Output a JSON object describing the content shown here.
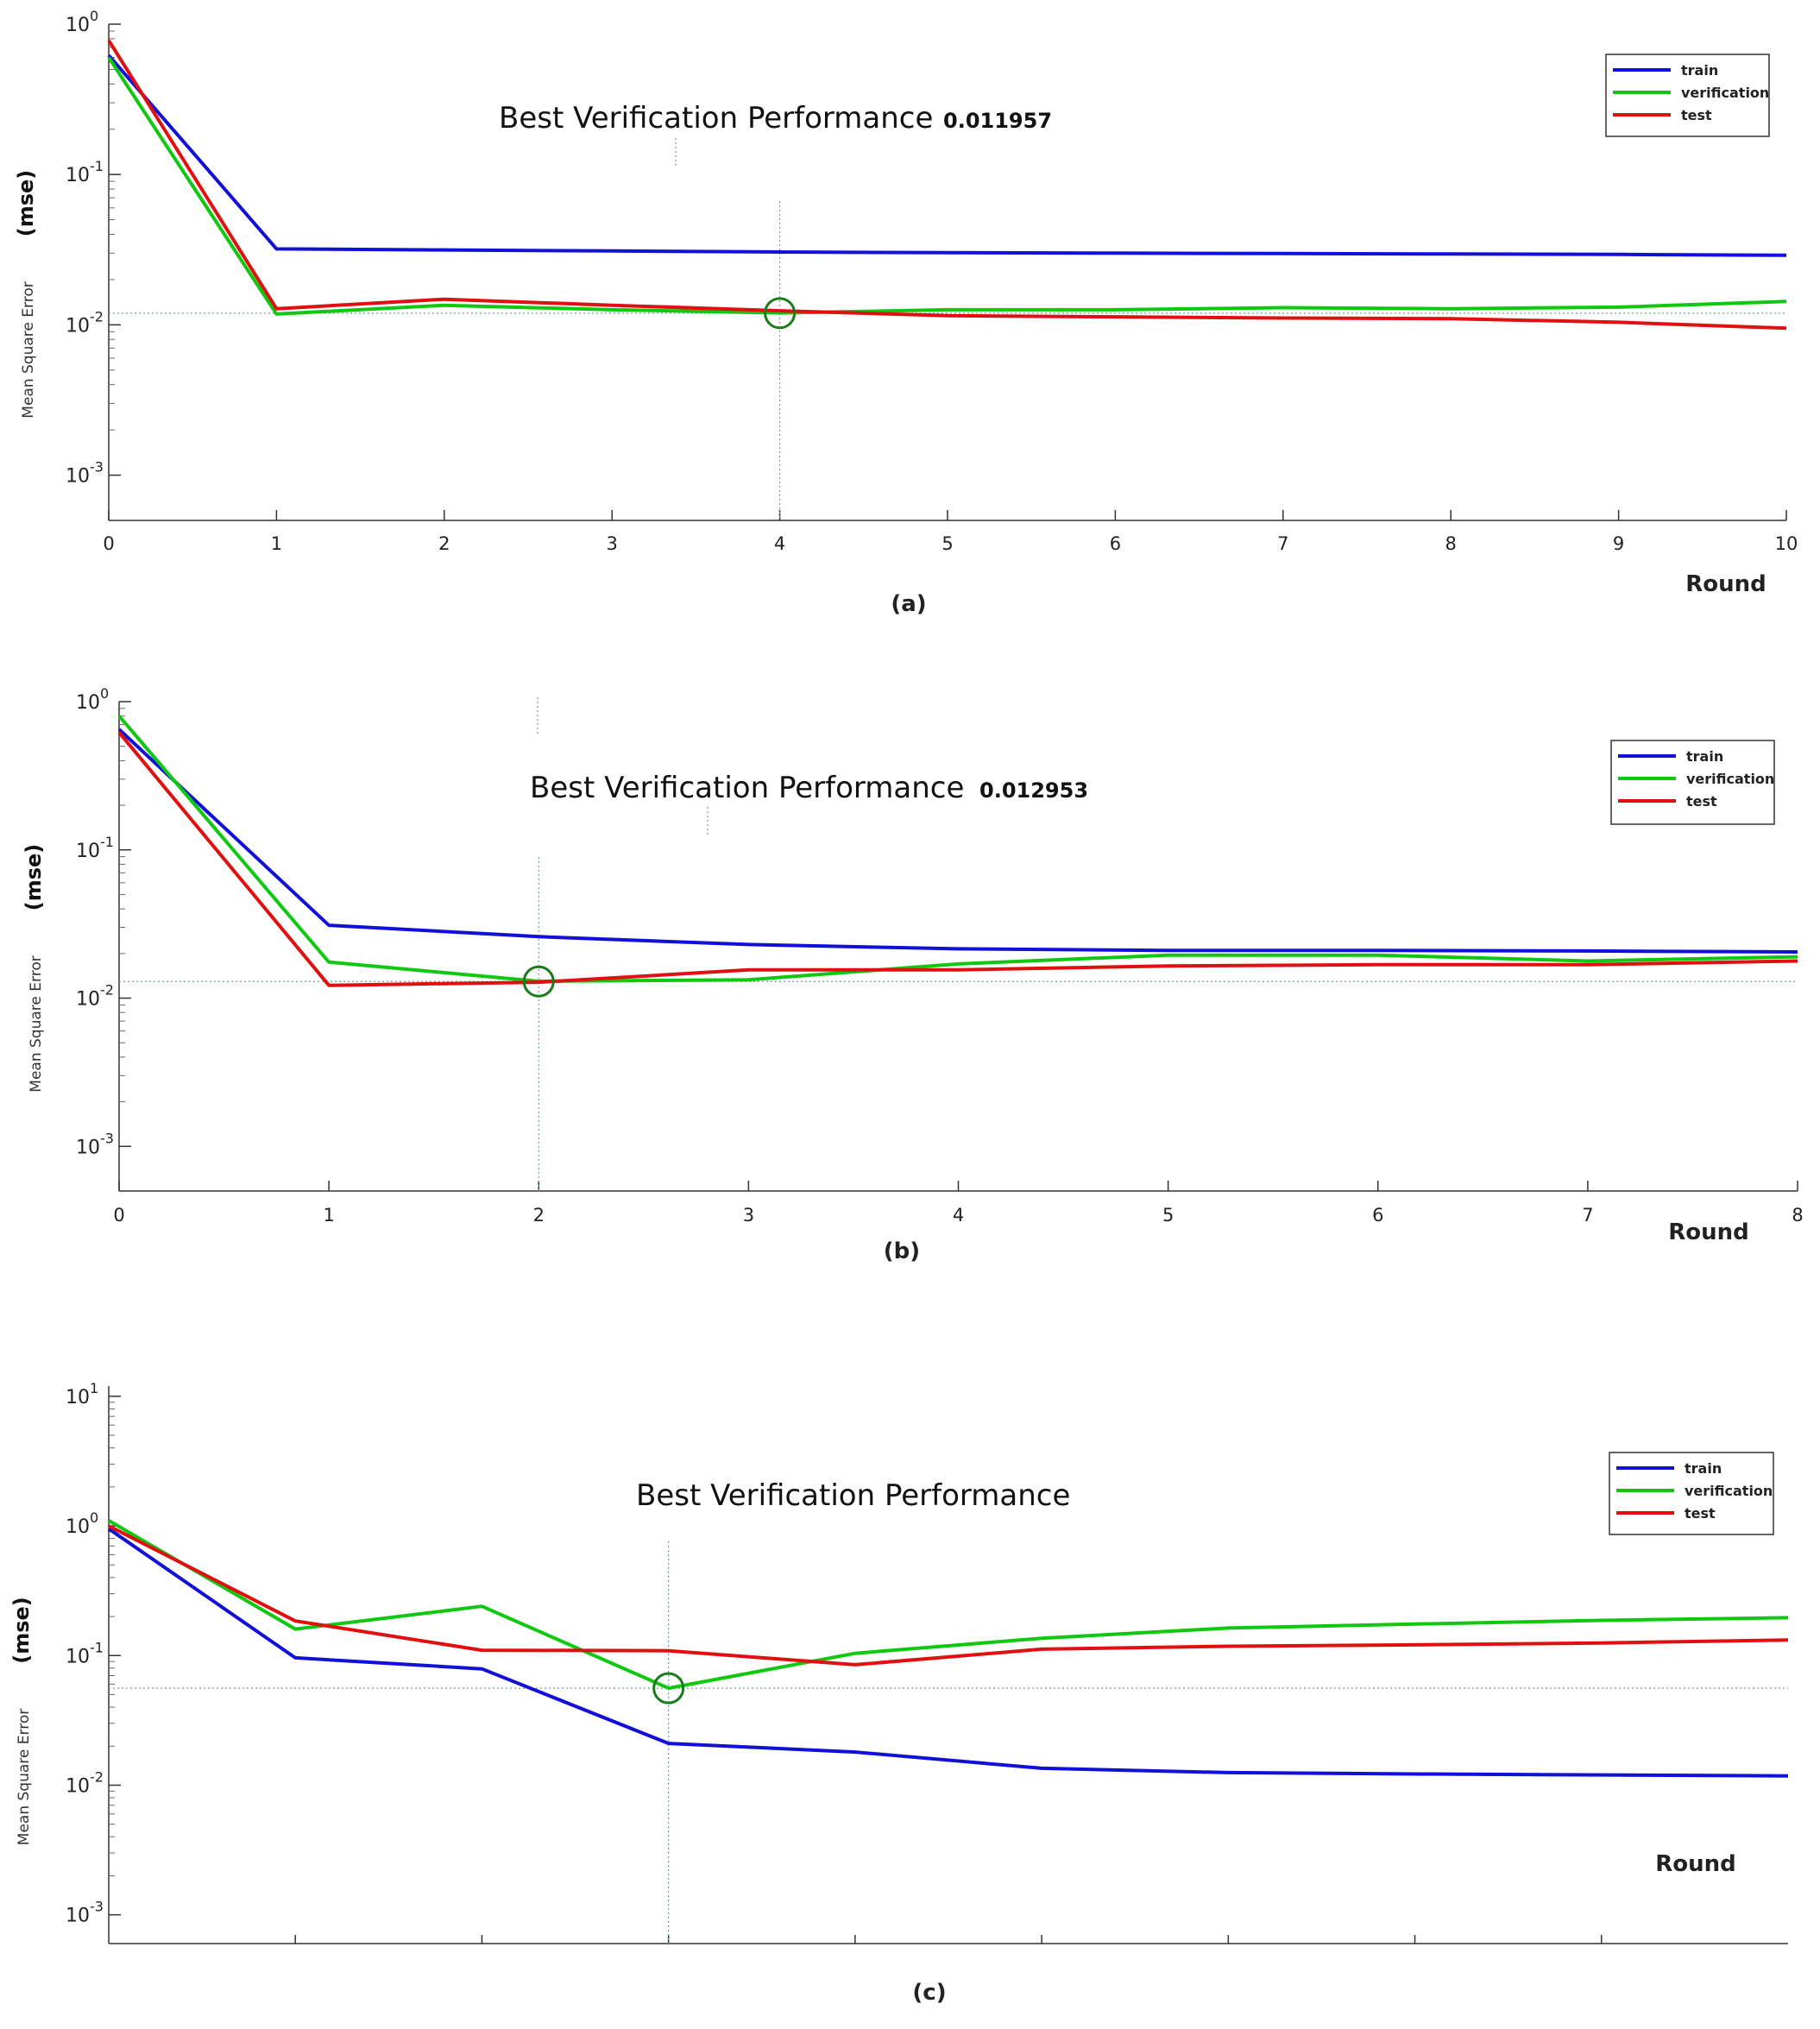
{
  "chart_data": [
    {
      "type": "line",
      "caption": "(a)",
      "title": "Best Verification Performance",
      "best_value": "0.011957",
      "xlabel": "Round",
      "ylabel": "Mean Square Error",
      "ylabel_unit": "(mse)",
      "yscale": "log",
      "xlim": [
        0,
        10
      ],
      "ylim": [
        0.0005,
        1.0
      ],
      "x_ticks": [
        "0",
        "1",
        "2",
        "3",
        "4",
        "5",
        "6",
        "7",
        "8",
        "9",
        "10"
      ],
      "y_ticks": [
        {
          "base": "10",
          "exp": "0",
          "value": 1.0
        },
        {
          "base": "10",
          "exp": "-1",
          "value": 0.1
        },
        {
          "base": "10",
          "exp": "-2",
          "value": 0.01
        },
        {
          "base": "10",
          "exp": "-3",
          "value": 0.001
        }
      ],
      "best_epoch": 4,
      "best_mse": 0.011957,
      "legend": [
        "train",
        "verification",
        "test"
      ],
      "series": [
        {
          "name": "train",
          "color": "#1010d8",
          "x": [
            0,
            1,
            2,
            3,
            4,
            5,
            6,
            7,
            8,
            9,
            10
          ],
          "values": [
            0.62,
            0.032,
            0.0315,
            0.031,
            0.0305,
            0.0302,
            0.03,
            0.0298,
            0.0296,
            0.0294,
            0.029
          ]
        },
        {
          "name": "verification",
          "color": "#10c810",
          "x": [
            0,
            1,
            2,
            3,
            4,
            5,
            6,
            7,
            8,
            9,
            10
          ],
          "values": [
            0.6,
            0.0118,
            0.0135,
            0.0126,
            0.012,
            0.0126,
            0.0126,
            0.013,
            0.0128,
            0.0131,
            0.0143
          ]
        },
        {
          "name": "test",
          "color": "#e01010",
          "x": [
            0,
            1,
            2,
            3,
            4,
            5,
            6,
            7,
            8,
            9,
            10
          ],
          "values": [
            0.78,
            0.0128,
            0.0148,
            0.0135,
            0.0124,
            0.0115,
            0.0113,
            0.0111,
            0.011,
            0.0104,
            0.0095
          ]
        }
      ]
    },
    {
      "type": "line",
      "caption": "(b)",
      "title": "Best Verification Performance",
      "best_value": "0.012953",
      "xlabel": "Round",
      "ylabel": "Mean Square Error",
      "ylabel_unit": "(mse)",
      "yscale": "log",
      "xlim": [
        0,
        8
      ],
      "ylim": [
        0.0005,
        1.0
      ],
      "x_ticks": [
        "0",
        "1",
        "2",
        "3",
        "4",
        "5",
        "6",
        "7",
        "8"
      ],
      "y_ticks": [
        {
          "base": "10",
          "exp": "0",
          "value": 1.0
        },
        {
          "base": "10",
          "exp": "-1",
          "value": 0.1
        },
        {
          "base": "10",
          "exp": "-2",
          "value": 0.01
        },
        {
          "base": "10",
          "exp": "-3",
          "value": 0.001
        }
      ],
      "best_epoch": 2,
      "best_mse": 0.012953,
      "legend": [
        "train",
        "verification",
        "test"
      ],
      "series": [
        {
          "name": "train",
          "color": "#1010d8",
          "x": [
            0,
            1,
            2,
            3,
            4,
            5,
            6,
            7,
            8
          ],
          "values": [
            0.65,
            0.031,
            0.026,
            0.023,
            0.0215,
            0.021,
            0.021,
            0.0208,
            0.0205
          ]
        },
        {
          "name": "verification",
          "color": "#10c810",
          "x": [
            0,
            1,
            2,
            3,
            4,
            5,
            6,
            7,
            8
          ],
          "values": [
            0.8,
            0.0175,
            0.013,
            0.0133,
            0.017,
            0.0195,
            0.0195,
            0.0178,
            0.019
          ]
        },
        {
          "name": "test",
          "color": "#e01010",
          "x": [
            0,
            1,
            2,
            3,
            4,
            5,
            6,
            7,
            8
          ],
          "values": [
            0.62,
            0.0122,
            0.0128,
            0.0155,
            0.0155,
            0.0165,
            0.0168,
            0.0168,
            0.0178
          ]
        }
      ]
    },
    {
      "type": "line",
      "caption": "(c)",
      "title": "Best Verification Performance",
      "best_value": "",
      "xlabel": "Round",
      "ylabel": "Mean Square Error",
      "ylabel_unit": "(mse)",
      "yscale": "log",
      "xlim": [
        0,
        9
      ],
      "ylim": [
        0.0006,
        12.0
      ],
      "x_ticks": [],
      "y_ticks": [
        {
          "base": "10",
          "exp": "1",
          "value": 10.0
        },
        {
          "base": "10",
          "exp": "0",
          "value": 1.0
        },
        {
          "base": "10",
          "exp": "-1",
          "value": 0.1
        },
        {
          "base": "10",
          "exp": "-2",
          "value": 0.01
        },
        {
          "base": "10",
          "exp": "-3",
          "value": 0.001
        }
      ],
      "best_epoch": 3,
      "best_mse": 0.056,
      "legend": [
        "train",
        "verification",
        "test"
      ],
      "series": [
        {
          "name": "train",
          "color": "#1010d8",
          "x": [
            0,
            1,
            2,
            3,
            4,
            5,
            6,
            7,
            8,
            9
          ],
          "values": [
            0.95,
            0.096,
            0.079,
            0.021,
            0.018,
            0.0135,
            0.0125,
            0.0122,
            0.012,
            0.0118
          ]
        },
        {
          "name": "verification",
          "color": "#10c810",
          "x": [
            0,
            1,
            2,
            3,
            4,
            5,
            6,
            7,
            8,
            9
          ],
          "values": [
            1.1,
            0.16,
            0.24,
            0.056,
            0.104,
            0.136,
            0.163,
            0.175,
            0.187,
            0.196
          ]
        },
        {
          "name": "test",
          "color": "#e01010",
          "x": [
            0,
            1,
            2,
            3,
            4,
            5,
            6,
            7,
            8,
            9
          ],
          "values": [
            1.0,
            0.185,
            0.11,
            0.109,
            0.085,
            0.112,
            0.118,
            0.121,
            0.125,
            0.132
          ]
        }
      ]
    }
  ]
}
